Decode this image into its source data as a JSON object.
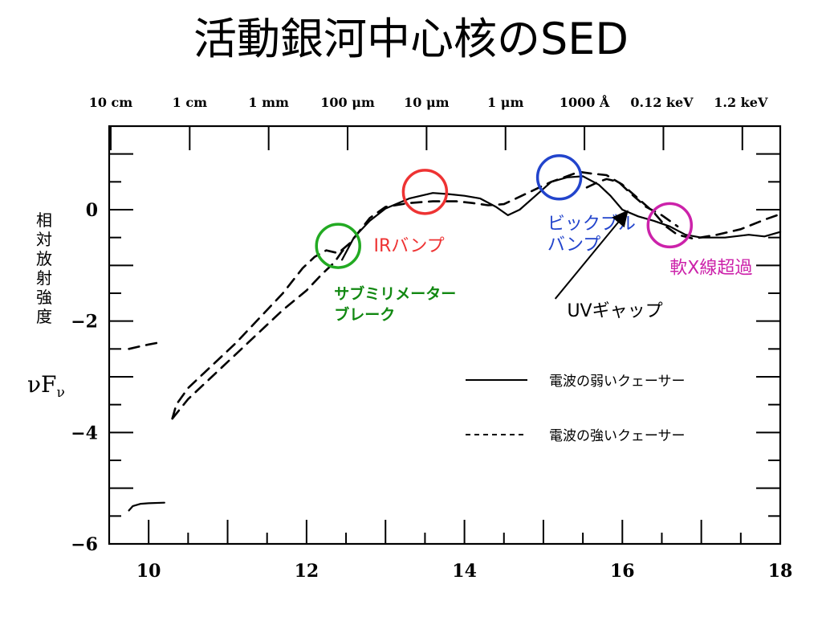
{
  "slide": {
    "title": "活動銀河中心核のSED"
  },
  "chart_data": {
    "type": "line",
    "title": "",
    "xlabel": "",
    "ylabel_vertical": "相対放射強度",
    "ylabel_symbol": "νF",
    "ylabel_subscript": "ν",
    "xlim": [
      9.5,
      18
    ],
    "ylim": [
      -6,
      1.5
    ],
    "x_ticks": [
      10,
      12,
      14,
      16,
      18
    ],
    "y_ticks": [
      0,
      -2,
      -4,
      -6
    ],
    "y_tick_labels": [
      "0",
      "−2",
      "−4",
      "−6"
    ],
    "top_axis_labels": [
      {
        "x": 9.52,
        "label": "10 cm"
      },
      {
        "x": 10.52,
        "label": "1 cm"
      },
      {
        "x": 11.52,
        "label": "1 mm"
      },
      {
        "x": 12.52,
        "label": "100 μm"
      },
      {
        "x": 13.52,
        "label": "10 μm"
      },
      {
        "x": 14.52,
        "label": "1 μm"
      },
      {
        "x": 15.52,
        "label": "1000 Å"
      },
      {
        "x": 16.5,
        "label": "0.12 keV"
      },
      {
        "x": 17.5,
        "label": "1.2 keV"
      }
    ],
    "grid": false,
    "legend_position": "bottom-right",
    "series": [
      {
        "name": "電波の弱いクェーサー",
        "style": "solid",
        "segments": [
          [
            [
              9.75,
              -5.4
            ],
            [
              9.8,
              -5.32
            ],
            [
              9.9,
              -5.28
            ],
            [
              10.0,
              -5.27
            ],
            [
              10.2,
              -5.26
            ]
          ],
          [
            [
              12.45,
              -0.9
            ],
            [
              12.6,
              -0.5
            ],
            [
              12.8,
              -0.2
            ],
            [
              13.0,
              0.02
            ],
            [
              13.3,
              0.2
            ],
            [
              13.6,
              0.3
            ],
            [
              13.8,
              0.28
            ],
            [
              14.0,
              0.25
            ],
            [
              14.2,
              0.2
            ],
            [
              14.4,
              0.05
            ],
            [
              14.55,
              -0.1
            ],
            [
              14.7,
              0.0
            ],
            [
              14.9,
              0.25
            ],
            [
              15.1,
              0.5
            ],
            [
              15.3,
              0.58
            ],
            [
              15.5,
              0.6
            ],
            [
              15.7,
              0.45
            ],
            [
              15.85,
              0.25
            ],
            [
              16.0,
              0.0
            ],
            [
              16.2,
              -0.12
            ],
            [
              16.4,
              -0.2
            ],
            [
              16.6,
              -0.3
            ],
            [
              16.8,
              -0.45
            ],
            [
              17.0,
              -0.5
            ],
            [
              17.3,
              -0.5
            ],
            [
              17.6,
              -0.45
            ],
            [
              17.8,
              -0.48
            ],
            [
              18.0,
              -0.4
            ]
          ]
        ]
      },
      {
        "name": "電波の強いクェーサー",
        "style": "dashed",
        "segments": [
          [
            [
              9.75,
              -2.5
            ],
            [
              9.9,
              -2.45
            ],
            [
              10.0,
              -2.42
            ],
            [
              10.15,
              -2.38
            ]
          ],
          [
            [
              10.3,
              -3.75
            ],
            [
              10.5,
              -3.4
            ],
            [
              10.8,
              -3.0
            ],
            [
              11.1,
              -2.6
            ],
            [
              11.4,
              -2.2
            ],
            [
              11.7,
              -1.8
            ],
            [
              12.0,
              -1.45
            ],
            [
              12.2,
              -1.15
            ],
            [
              12.35,
              -0.95
            ],
            [
              12.45,
              -0.75
            ],
            [
              12.55,
              -0.6
            ]
          ],
          [
            [
              10.3,
              -3.75
            ],
            [
              10.35,
              -3.5
            ],
            [
              10.5,
              -3.2
            ],
            [
              10.8,
              -2.8
            ],
            [
              11.1,
              -2.4
            ],
            [
              11.4,
              -1.95
            ],
            [
              11.7,
              -1.5
            ],
            [
              11.95,
              -1.05
            ],
            [
              12.1,
              -0.85
            ],
            [
              12.25,
              -0.73
            ],
            [
              12.4,
              -0.78
            ],
            [
              12.55,
              -0.6
            ],
            [
              12.8,
              -0.15
            ],
            [
              13.0,
              0.05
            ],
            [
              13.3,
              0.12
            ],
            [
              13.6,
              0.15
            ],
            [
              13.9,
              0.15
            ],
            [
              14.1,
              0.12
            ],
            [
              14.3,
              0.08
            ],
            [
              14.5,
              0.1
            ],
            [
              14.8,
              0.3
            ],
            [
              15.1,
              0.5
            ],
            [
              15.3,
              0.6
            ],
            [
              15.45,
              0.68
            ],
            [
              15.6,
              0.65
            ],
            [
              15.8,
              0.62
            ],
            [
              16.0,
              0.45
            ],
            [
              16.2,
              0.2
            ],
            [
              16.4,
              -0.05
            ],
            [
              16.55,
              -0.3
            ],
            [
              16.7,
              -0.45
            ],
            [
              16.9,
              -0.52
            ],
            [
              17.2,
              -0.45
            ],
            [
              17.5,
              -0.35
            ],
            [
              17.8,
              -0.18
            ],
            [
              18.0,
              -0.08
            ]
          ],
          [
            [
              15.55,
              0.4
            ],
            [
              15.7,
              0.5
            ],
            [
              15.8,
              0.55
            ],
            [
              15.95,
              0.5
            ],
            [
              16.1,
              0.3
            ],
            [
              16.3,
              0.05
            ],
            [
              16.5,
              -0.1
            ],
            [
              16.7,
              -0.3
            ]
          ]
        ]
      }
    ],
    "annotations": [
      {
        "id": "submm-break",
        "circle_center": [
          12.4,
          -0.65
        ],
        "circle_color": "#22aa22",
        "label_lines": [
          "サブミリメーター",
          "ブレーク"
        ],
        "label_color": "#118811",
        "label_pos": [
          12.35,
          -1.6
        ]
      },
      {
        "id": "ir-bump",
        "circle_center": [
          13.5,
          0.32
        ],
        "circle_color": "#ee3333",
        "label_lines": [
          "IRバンプ"
        ],
        "label_color": "#ee3333",
        "label_pos": [
          12.85,
          -0.75
        ]
      },
      {
        "id": "big-blue-bump",
        "circle_center": [
          15.2,
          0.58
        ],
        "circle_color": "#2244cc",
        "label_lines": [
          "ビックブル",
          "バンプ"
        ],
        "label_color": "#2244cc",
        "label_pos": [
          15.05,
          -0.35
        ]
      },
      {
        "id": "soft-x-excess",
        "circle_center": [
          16.6,
          -0.28
        ],
        "circle_color": "#cc22aa",
        "label_lines": [
          "軟X線超過"
        ],
        "label_color": "#cc22aa",
        "label_pos": [
          16.6,
          -1.15
        ]
      },
      {
        "id": "uv-gap",
        "label_lines": [
          "UVギャップ"
        ],
        "label_color": "#000000",
        "label_pos": [
          15.3,
          -1.92
        ],
        "arrow_from": [
          15.15,
          -1.6
        ],
        "arrow_to": [
          16.05,
          -0.05
        ]
      }
    ]
  }
}
